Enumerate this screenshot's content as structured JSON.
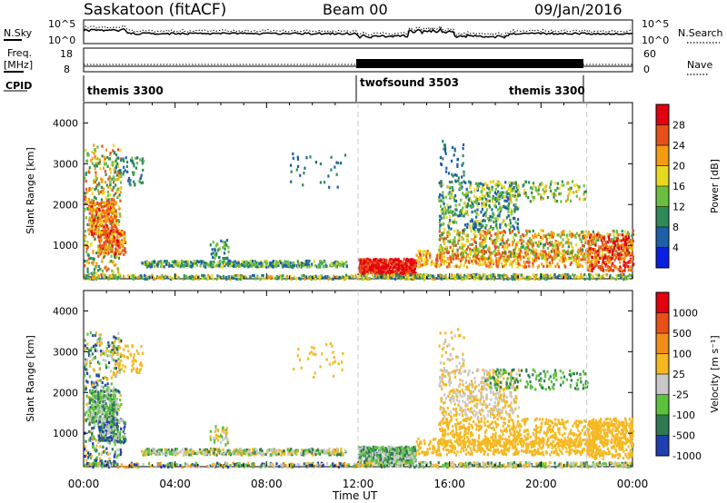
{
  "header": {
    "station": "Saskatoon (fitACF)",
    "beam": "Beam 00",
    "date": "09/Jan/2016"
  },
  "top_panels": {
    "nsky_label": "N.Sky",
    "nsearch_label": "N.Search",
    "noise_left_ticks": [
      "10^5",
      "10^0"
    ],
    "noise_right_ticks": [
      "10^5",
      "10^0"
    ],
    "freq_label_line1": "Freq.",
    "freq_label_line2": "[MHz]",
    "freq_ticks": [
      "18",
      "8"
    ],
    "nave_label": "Nave",
    "nave_ticks": [
      "60",
      "0"
    ],
    "cpid_label": "CPID",
    "cpid_segments": [
      {
        "name": "themis 3300",
        "start_hour": 0,
        "end_hour": 12
      },
      {
        "name": "twofsound 3503",
        "start_hour": 12,
        "end_hour": 22
      },
      {
        "name": "themis 3300",
        "start_hour": 22,
        "end_hour": 24
      }
    ]
  },
  "chart_data": [
    {
      "type": "heatmap",
      "title": "Power",
      "xlabel": "Time UT",
      "ylabel": "Slant Range [km]",
      "xlim": [
        0,
        24
      ],
      "ylim": [
        180,
        4500
      ],
      "x_tick_labels": [
        "00:00",
        "04:00",
        "08:00",
        "12:00",
        "16:00",
        "20:00",
        "00:00"
      ],
      "y_tick_labels": [
        "1000",
        "2000",
        "3000",
        "4000"
      ],
      "y_ticks": [
        1000,
        2000,
        3000,
        4000
      ],
      "colorbar_label": "Power [dB]",
      "colorbar_ticks": [
        "28",
        "24",
        "20",
        "16",
        "12",
        "8",
        "4"
      ],
      "colorbar_values": [
        28,
        24,
        20,
        16,
        12,
        8,
        4
      ],
      "colorbar_range": [
        0,
        32
      ],
      "colorbar_colors": [
        "#0a1fe0",
        "#1d5fa8",
        "#2e8b57",
        "#6bbf40",
        "#e8d820",
        "#f39c12",
        "#e8501a",
        "#e3000f"
      ]
    },
    {
      "type": "heatmap",
      "title": "Velocity",
      "xlabel": "Time UT",
      "ylabel": "Slant Range [km]",
      "xlim": [
        0,
        24
      ],
      "ylim": [
        180,
        4500
      ],
      "x_tick_labels": [
        "00:00",
        "04:00",
        "08:00",
        "12:00",
        "16:00",
        "20:00",
        "00:00"
      ],
      "y_tick_labels": [
        "1000",
        "2000",
        "3000",
        "4000"
      ],
      "y_ticks": [
        1000,
        2000,
        3000,
        4000
      ],
      "colorbar_label": "Velocity [m s⁻¹]",
      "colorbar_ticks": [
        "1000",
        "500",
        "100",
        "25",
        "-25",
        "-100",
        "-500",
        "-1000"
      ],
      "colorbar_colors": [
        "#1f3fb0",
        "#2e7b52",
        "#5cc23c",
        "#c8c8c8",
        "#f5b820",
        "#f08c1a",
        "#e8501a",
        "#e3000f"
      ]
    }
  ],
  "time_label": "Time UT"
}
